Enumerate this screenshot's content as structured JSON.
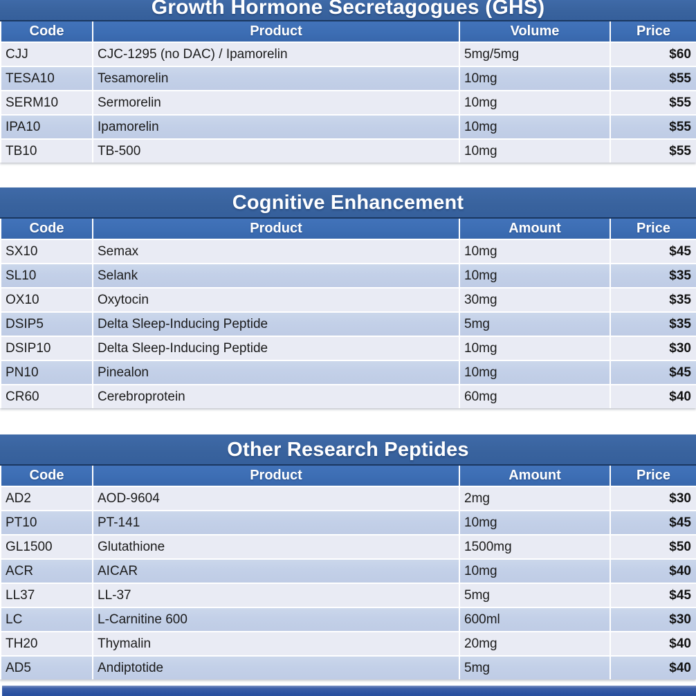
{
  "colors": {
    "title_bar": "#39639E",
    "header_bar": "#3C6DB3",
    "navy_rule": "#1A3760",
    "row_light": "#E9EBF4",
    "row_band": "#C3D0E8",
    "header_text": "#FFFFFF",
    "cell_text": "#1B1B1B",
    "bottom_bar": "#2A51A0"
  },
  "tables": [
    {
      "title": "Growth Hormone Secretagogues (GHS)",
      "columns": [
        "Code",
        "Product",
        "Volume",
        "Price"
      ],
      "rows": [
        {
          "code": "CJJ",
          "product": "CJC-1295 (no DAC) / Ipamorelin",
          "amount": "5mg/5mg",
          "price": "$60"
        },
        {
          "code": "TESA10",
          "product": "Tesamorelin",
          "amount": "10mg",
          "price": "$55"
        },
        {
          "code": "SERM10",
          "product": "Sermorelin",
          "amount": "10mg",
          "price": "$55"
        },
        {
          "code": "IPA10",
          "product": "Ipamorelin",
          "amount": "10mg",
          "price": "$55"
        },
        {
          "code": "TB10",
          "product": "TB-500",
          "amount": "10mg",
          "price": "$55"
        }
      ]
    },
    {
      "title": "Cognitive Enhancement",
      "columns": [
        "Code",
        "Product",
        "Amount",
        "Price"
      ],
      "rows": [
        {
          "code": "SX10",
          "product": "Semax",
          "amount": "10mg",
          "price": "$45"
        },
        {
          "code": "SL10",
          "product": "Selank",
          "amount": "10mg",
          "price": "$35"
        },
        {
          "code": "OX10",
          "product": "Oxytocin",
          "amount": "30mg",
          "price": "$35"
        },
        {
          "code": "DSIP5",
          "product": "Delta Sleep-Inducing Peptide",
          "amount": "5mg",
          "price": "$35"
        },
        {
          "code": "DSIP10",
          "product": "Delta Sleep-Inducing Peptide",
          "amount": "10mg",
          "price": "$30"
        },
        {
          "code": "PN10",
          "product": "Pinealon",
          "amount": "10mg",
          "price": "$45"
        },
        {
          "code": "CR60",
          "product": "Cerebroprotein",
          "amount": "60mg",
          "price": "$40"
        }
      ]
    },
    {
      "title": "Other Research Peptides",
      "columns": [
        "Code",
        "Product",
        "Amount",
        "Price"
      ],
      "rows": [
        {
          "code": "AD2",
          "product": "AOD-9604",
          "amount": "2mg",
          "price": "$30"
        },
        {
          "code": "PT10",
          "product": "PT-141",
          "amount": "10mg",
          "price": "$45"
        },
        {
          "code": "GL1500",
          "product": "Glutathione",
          "amount": "1500mg",
          "price": "$50"
        },
        {
          "code": "ACR",
          "product": "AICAR",
          "amount": "10mg",
          "price": "$40"
        },
        {
          "code": "LL37",
          "product": "LL-37",
          "amount": "5mg",
          "price": "$45"
        },
        {
          "code": "LC",
          "product": "L-Carnitine 600",
          "amount": "600ml",
          "price": "$30"
        },
        {
          "code": "TH20",
          "product": "Thymalin",
          "amount": "20mg",
          "price": "$40"
        },
        {
          "code": "AD5",
          "product": "Andiptotide",
          "amount": "5mg",
          "price": "$40"
        }
      ]
    }
  ]
}
